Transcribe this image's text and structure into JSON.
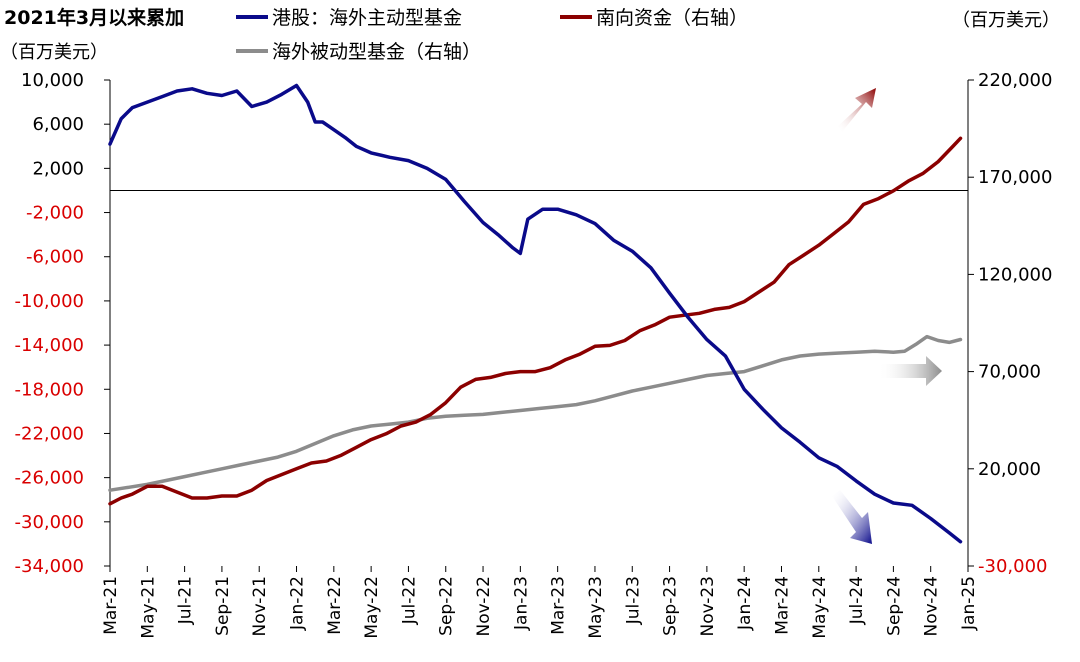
{
  "chart_data": {
    "type": "line",
    "title": "2021年3月以来累加",
    "left_unit": "（百万美元）",
    "right_unit": "（百万美元）",
    "x_categories": [
      "Mar-21",
      "May-21",
      "Jul-21",
      "Sep-21",
      "Nov-21",
      "Jan-22",
      "Mar-22",
      "May-22",
      "Jul-22",
      "Sep-22",
      "Nov-22",
      "Jan-23",
      "Mar-23",
      "May-23",
      "Jul-23",
      "Sep-23",
      "Nov-23",
      "Jan-24",
      "Mar-24",
      "May-24",
      "Jul-24",
      "Sep-24",
      "Nov-24",
      "Jan-25"
    ],
    "left_axis": {
      "ylim": [
        -34000,
        10000
      ],
      "ticks": [
        "10,000",
        "6,000",
        "2,000",
        "-2,000",
        "-6,000",
        "-10,000",
        "-14,000",
        "-18,000",
        "-22,000",
        "-26,000",
        "-30,000",
        "-34,000"
      ],
      "tick_values": [
        10000,
        6000,
        2000,
        -2000,
        -6000,
        -10000,
        -14000,
        -18000,
        -22000,
        -26000,
        -30000,
        -34000
      ]
    },
    "right_axis": {
      "ylim": [
        -30000,
        220000
      ],
      "ticks": [
        "220,000",
        "170,000",
        "120,000",
        "70,000",
        "20,000",
        "-30,000"
      ],
      "tick_values": [
        220000,
        170000,
        120000,
        70000,
        20000,
        -30000
      ]
    },
    "legend_position": "top",
    "series": [
      {
        "name": "港股：海外主动型基金",
        "axis": "left",
        "color": "#0a0a8a",
        "x": [
          0,
          0.3,
          0.6,
          1,
          1.4,
          1.8,
          2.2,
          2.6,
          3,
          3.4,
          3.8,
          4.2,
          4.6,
          5,
          5.3,
          5.5,
          5.7,
          6,
          6.3,
          6.6,
          7,
          7.5,
          8,
          8.5,
          9,
          9.5,
          10,
          10.4,
          10.8,
          11,
          11.2,
          11.6,
          12,
          12.5,
          13,
          13.5,
          14,
          14.5,
          15,
          15.5,
          16,
          16.5,
          17,
          17.5,
          18,
          18.5,
          19,
          19.5,
          20,
          20.5,
          21,
          21.5,
          22,
          22.5,
          22.8
        ],
        "y": [
          4200,
          6500,
          7500,
          8000,
          8500,
          9000,
          9200,
          8800,
          8600,
          9000,
          7600,
          8000,
          8700,
          9500,
          8000,
          6200,
          6200,
          5500,
          4800,
          4000,
          3400,
          3000,
          2700,
          2000,
          1000,
          -1000,
          -2900,
          -4000,
          -5200,
          -5700,
          -2600,
          -1700,
          -1700,
          -2200,
          -3000,
          -4500,
          -5500,
          -7000,
          -9300,
          -11500,
          -13500,
          -15000,
          -18000,
          -19800,
          -21500,
          -22800,
          -24200,
          -25000,
          -26300,
          -27500,
          -28300,
          -28500,
          -29700,
          -31000,
          -31800
        ]
      },
      {
        "name": "南向资金（右轴）",
        "axis": "right",
        "color": "#8b0000",
        "x": [
          0,
          0.3,
          0.6,
          1,
          1.4,
          1.8,
          2.2,
          2.6,
          3,
          3.4,
          3.8,
          4.2,
          4.6,
          5,
          5.4,
          5.8,
          6.2,
          6.6,
          7,
          7.4,
          7.8,
          8.2,
          8.6,
          9,
          9.4,
          9.8,
          10.2,
          10.6,
          11,
          11.4,
          11.8,
          12.2,
          12.6,
          13,
          13.4,
          13.8,
          14.2,
          14.6,
          15,
          15.4,
          15.8,
          16.2,
          16.6,
          17,
          17.4,
          17.8,
          18.2,
          18.6,
          19,
          19.4,
          19.8,
          20.2,
          20.6,
          21,
          21.4,
          21.8,
          22.2,
          22.6,
          22.8
        ],
        "y": [
          2000,
          5000,
          7000,
          11000,
          11000,
          8000,
          5000,
          5000,
          6000,
          6000,
          9000,
          14000,
          17000,
          20000,
          23000,
          24000,
          27000,
          31000,
          35000,
          38000,
          42000,
          44000,
          48000,
          54000,
          62000,
          66000,
          67000,
          69000,
          70000,
          70000,
          72000,
          76000,
          79000,
          83000,
          83500,
          86000,
          91000,
          94000,
          98000,
          99000,
          100000,
          102000,
          103000,
          106000,
          111000,
          116000,
          125000,
          130000,
          135000,
          141000,
          147000,
          156000,
          159000,
          163000,
          168000,
          172000,
          178000,
          186000,
          190000
        ]
      },
      {
        "name": "海外被动型基金（右轴）",
        "axis": "right",
        "color": "#8c8c8c",
        "x": [
          0,
          0.5,
          1,
          1.5,
          2,
          2.5,
          3,
          3.5,
          4,
          4.5,
          5,
          5.5,
          6,
          6.5,
          7,
          7.5,
          8,
          8.5,
          9,
          9.5,
          10,
          10.5,
          11,
          11.5,
          12,
          12.5,
          13,
          13.5,
          14,
          14.5,
          15,
          15.5,
          16,
          16.5,
          17,
          17.5,
          18,
          18.5,
          19,
          19.5,
          20,
          20.5,
          21,
          21.3,
          21.6,
          21.9,
          22.2,
          22.5,
          22.8
        ],
        "y": [
          9000,
          10500,
          12000,
          14000,
          16000,
          18000,
          20000,
          22000,
          24000,
          26000,
          29000,
          33000,
          37000,
          40000,
          42000,
          43000,
          44000,
          46000,
          47000,
          47500,
          48000,
          49000,
          50000,
          51000,
          52000,
          53000,
          55000,
          57500,
          60000,
          62000,
          64000,
          66000,
          68000,
          69000,
          70000,
          73000,
          76000,
          78000,
          79000,
          79500,
          80000,
          80500,
          80000,
          80500,
          84000,
          88000,
          86000,
          85000,
          86500
        ]
      }
    ]
  }
}
